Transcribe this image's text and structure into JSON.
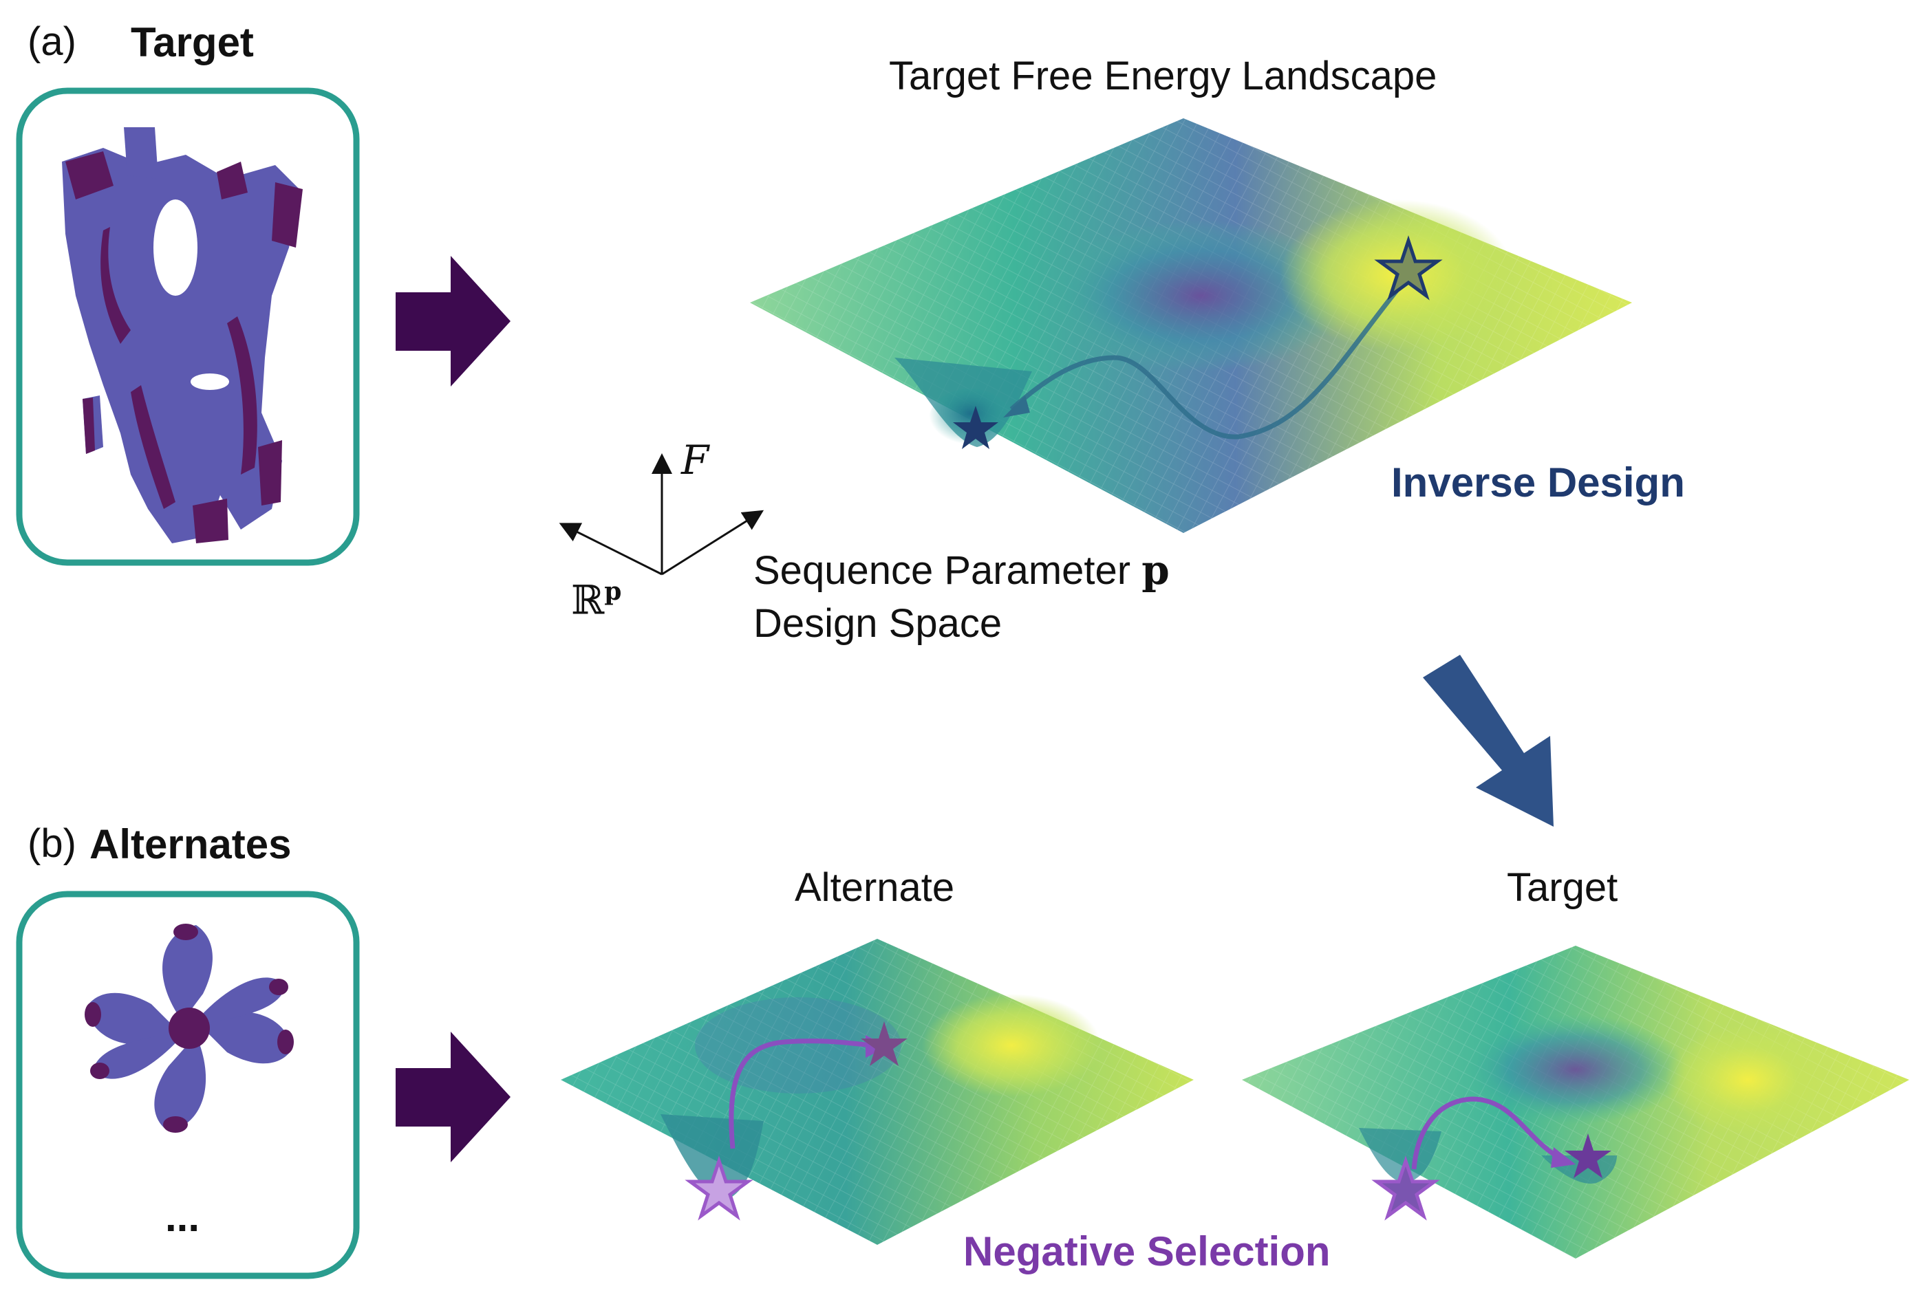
{
  "panel_a": {
    "letter": "(a)",
    "title": "Target",
    "landscape_title": "Target Free Energy Landscape",
    "axis_f": "F",
    "axis_r": "ℝ",
    "axis_r_sup": "p",
    "seq_label": "Sequence Parameter",
    "seq_symbol": "p",
    "design_space": "Design Space",
    "inverse_design": "Inverse Design"
  },
  "panel_b": {
    "letter": "(b)",
    "title": "Alternates",
    "ellipsis": "...",
    "alternate_title": "Alternate",
    "target_title": "Target",
    "negative_selection": "Negative Selection"
  },
  "colors": {
    "box_border": "#2a9d8f",
    "big_arrow": "#3d0a4f",
    "blue_arrow": "#2f5288",
    "inverse_design": "#1f3a6e",
    "negative_selection": "#7a3aa8",
    "star_dark": "#1f3a6e",
    "star_purple": "#9b59c9"
  }
}
